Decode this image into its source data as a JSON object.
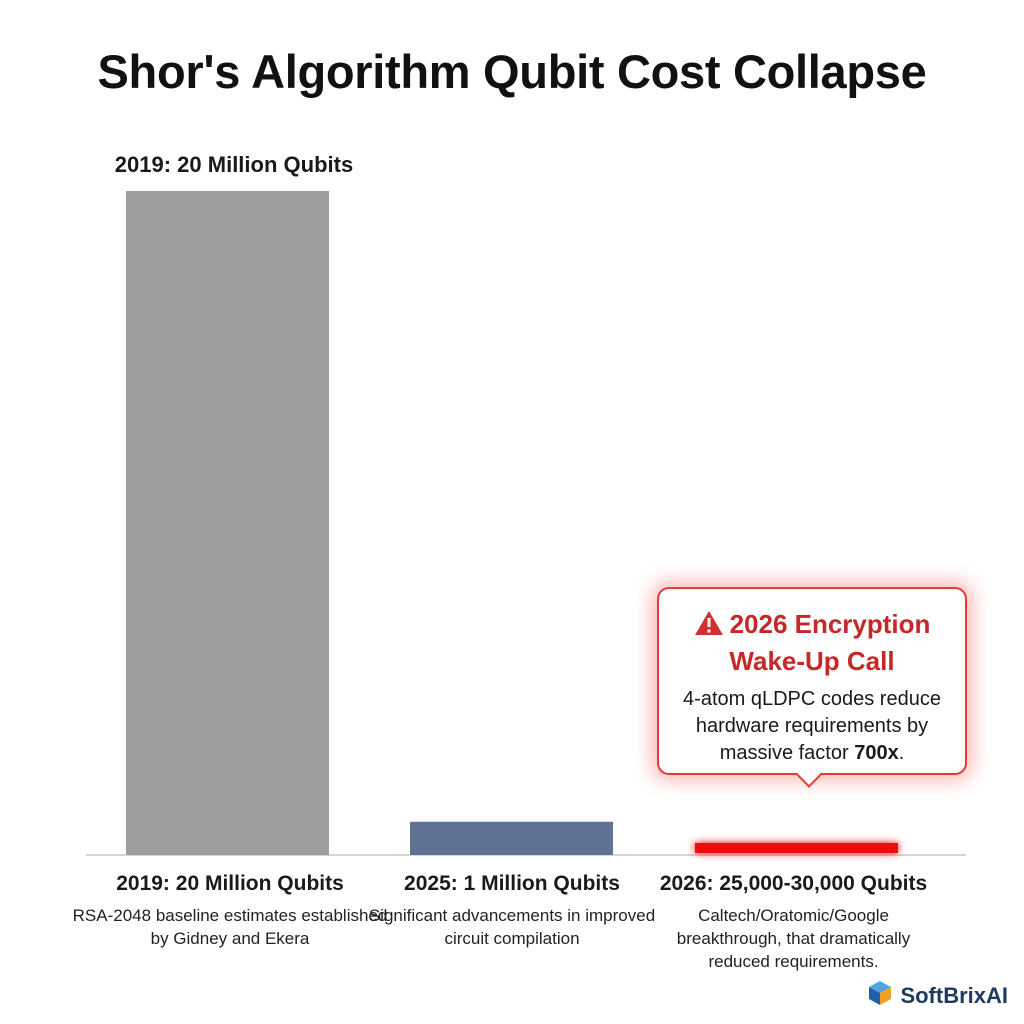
{
  "chart_data": {
    "type": "bar",
    "title": "Shor's Algorithm Qubit Cost Collapse",
    "xlabel": "",
    "ylabel": "",
    "categories": [
      "2019: 20 Million Qubits",
      "2025: 1 Million Qubits",
      "2026: 25,000-30,000 Qubits"
    ],
    "values": [
      20000000,
      1000000,
      27500
    ],
    "ylim": [
      0,
      20000000
    ],
    "grid": false,
    "bar_colors": [
      "#9e9e9e",
      "#5f7294",
      "#ee1111"
    ],
    "descriptions": [
      "RSA-2048 baseline estimates established by Gidney and Ekera",
      "Significant advancements in improved circuit compilation",
      "Caltech/Oratomic/Google breakthrough, that dramatically reduced requirements."
    ],
    "top_label": "2019: 20 Million Qubits",
    "annotation": {
      "title_line1": "2026 Encryption",
      "title_line2": "Wake-Up Call",
      "body_prefix": "4-atom qLDPC codes reduce hardware requirements by massive factor ",
      "body_bold": "700x",
      "body_suffix": ".",
      "icon": "warning-triangle-icon",
      "color": "#c62828"
    }
  },
  "brand": {
    "name": "SoftBrixAI",
    "icon": "cube-logo-icon"
  }
}
